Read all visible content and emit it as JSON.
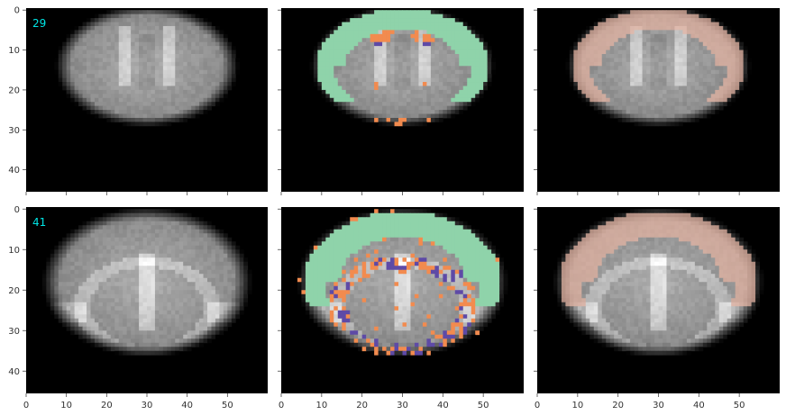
{
  "chart_data": {
    "type": "heatmap",
    "layout": {
      "rows": 2,
      "cols": 3
    },
    "xlim": [
      0,
      60
    ],
    "ylim": [
      45.5,
      -0.5
    ],
    "xticks": [
      0,
      10,
      20,
      30,
      40,
      50
    ],
    "yticks": [
      0,
      10,
      20,
      30,
      40
    ],
    "xtick_labels": [
      "0",
      "10",
      "20",
      "30",
      "40",
      "50"
    ],
    "ytick_labels": [
      "0",
      "10",
      "20",
      "30",
      "40"
    ],
    "background_color": "#000000",
    "slice_label_color": "#00e5e5",
    "rows_data": [
      {
        "slice_label": "29",
        "brain_center": [
          30,
          14
        ],
        "brain_radius": [
          21,
          14
        ],
        "cortex_band": {
          "x_range": [
            7,
            57
          ],
          "y_range": [
            1,
            22
          ]
        },
        "cortex_color": "#8fd3aa",
        "orange_color": "#f28b4f",
        "purple_color": "#5e4aa6",
        "overlay_color": "#e8b5a3"
      },
      {
        "slice_label": "41",
        "brain_center": [
          30,
          18
        ],
        "brain_radius": [
          24,
          17
        ],
        "cortex_band": {
          "x_range": [
            6,
            55
          ],
          "y_range": [
            2,
            23
          ]
        },
        "cortex_color": "#8fd3aa",
        "orange_color": "#f28b4f",
        "purple_color": "#5e4aa6",
        "overlay_color": "#e8b5a3"
      }
    ],
    "panels": [
      {
        "row": 0,
        "col": 0,
        "kind": "template"
      },
      {
        "row": 0,
        "col": 1,
        "kind": "labels"
      },
      {
        "row": 0,
        "col": 2,
        "kind": "overlay"
      },
      {
        "row": 1,
        "col": 0,
        "kind": "template"
      },
      {
        "row": 1,
        "col": 1,
        "kind": "labels"
      },
      {
        "row": 1,
        "col": 2,
        "kind": "overlay"
      }
    ]
  }
}
